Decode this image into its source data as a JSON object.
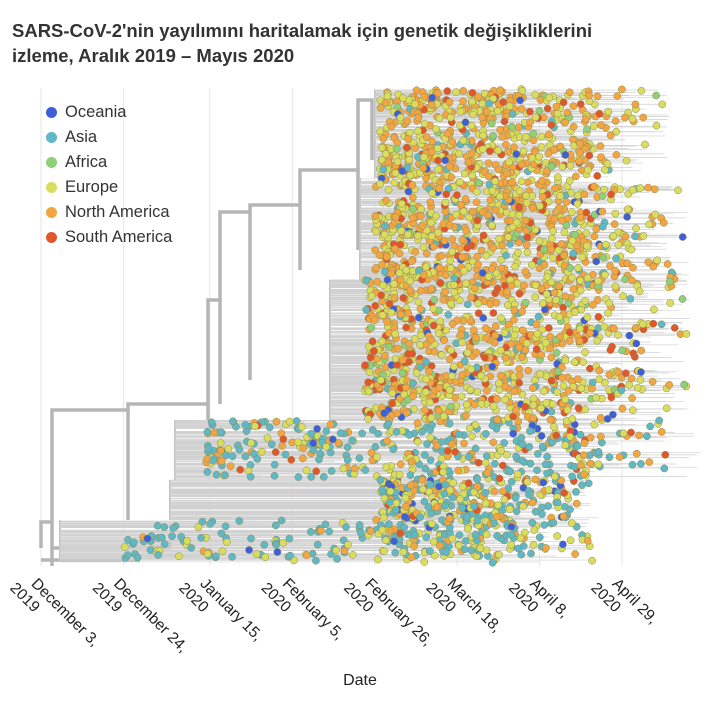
{
  "title_line1": "SARS-CoV-2'nin yayılımını haritalamak için genetik değişikliklerini",
  "title_line2": "izleme, Aralık 2019 – Mayıs 2020",
  "chart_data": {
    "type": "scatter",
    "description_visible": "phylogenetic tree over time",
    "xlabel": "Date",
    "x_ticks": [
      {
        "line1": "December 3,",
        "line2": "2019",
        "date": "2019-12-03"
      },
      {
        "line1": "December 24,",
        "line2": "2019",
        "date": "2019-12-24"
      },
      {
        "line1": "January 15,",
        "line2": "2020",
        "date": "2020-01-15"
      },
      {
        "line1": "February 5,",
        "line2": "2020",
        "date": "2020-02-05"
      },
      {
        "line1": "February 26,",
        "line2": "2020",
        "date": "2020-02-26"
      },
      {
        "line1": "March 18,",
        "line2": "2020",
        "date": "2020-03-18"
      },
      {
        "line1": "April 8,",
        "line2": "2020",
        "date": "2020-04-08"
      },
      {
        "line1": "April 29,",
        "line2": "2020",
        "date": "2020-04-29"
      }
    ],
    "xlim": [
      "2019-12-03",
      "2020-05-15"
    ],
    "grid": true,
    "legend_position": "top-left",
    "series": [
      {
        "name": "Oceania",
        "color": "#3d5fd9"
      },
      {
        "name": "Asia",
        "color": "#5fb8c4"
      },
      {
        "name": "Africa",
        "color": "#8ecf7a"
      },
      {
        "name": "Europe",
        "color": "#d9dc5c"
      },
      {
        "name": "North America",
        "color": "#f2a541"
      },
      {
        "name": "South America",
        "color": "#e2572a"
      }
    ]
  }
}
